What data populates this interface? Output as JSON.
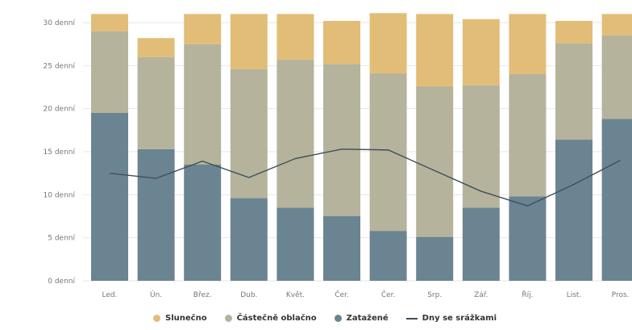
{
  "chart_data": {
    "type": "bar",
    "stacked": true,
    "categories": [
      "Led.",
      "Ún.",
      "Břez.",
      "Dub.",
      "Květ.",
      "Čer.",
      "Čer.",
      "Srp.",
      "Zář.",
      "Říj.",
      "List.",
      "Pros."
    ],
    "series": [
      {
        "name": "Zatažené",
        "kind": "bar",
        "color": "#6b8491",
        "values": [
          19.5,
          15.3,
          13.5,
          9.6,
          8.5,
          7.5,
          5.8,
          5.1,
          8.5,
          9.8,
          16.4,
          18.8
        ]
      },
      {
        "name": "Částečně oblačno",
        "kind": "bar",
        "color": "#b5b39c",
        "values": [
          9.5,
          10.7,
          14.0,
          15.0,
          17.2,
          17.7,
          18.3,
          17.5,
          14.2,
          14.2,
          11.2,
          9.7
        ]
      },
      {
        "name": "Slunečno",
        "kind": "bar",
        "color": "#e2bd78",
        "values": [
          2.0,
          2.2,
          3.5,
          6.4,
          5.3,
          5.0,
          7.0,
          8.4,
          7.7,
          7.0,
          2.6,
          2.5
        ]
      },
      {
        "name": "Dny se srážkami",
        "kind": "line",
        "color": "#3f4f58",
        "values": [
          12.5,
          11.9,
          13.9,
          12.0,
          14.2,
          15.3,
          15.2,
          12.8,
          10.4,
          8.7,
          11.2,
          14.0
        ]
      }
    ],
    "yticks": [
      "0 denní",
      "5 denní",
      "10 denní",
      "15 denní",
      "20 denní",
      "25 denní",
      "30 denní"
    ],
    "ylim": [
      0,
      30
    ],
    "grid": true,
    "legend": "bottom"
  },
  "legend": {
    "sunny": "Slunečno",
    "partly": "Částečně oblačno",
    "overcast": "Zatažené",
    "precip": "Dny se srážkami"
  }
}
